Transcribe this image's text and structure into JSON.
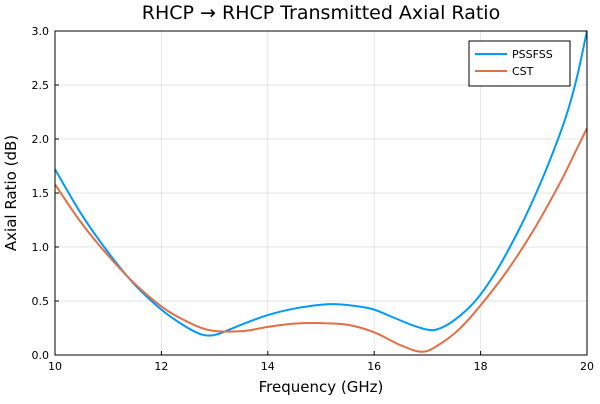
{
  "chart_data": {
    "type": "line",
    "title": "RHCP → RHCP Transmitted Axial Ratio",
    "xlabel": "Frequency (GHz)",
    "ylabel": "Axial Ratio (dB)",
    "xlim": [
      10,
      20
    ],
    "ylim": [
      0.0,
      3.0
    ],
    "xticks": [
      10,
      12,
      14,
      16,
      18,
      20
    ],
    "xtick_labels": [
      "10",
      "12",
      "14",
      "16",
      "18",
      "20"
    ],
    "yticks": [
      0.0,
      0.5,
      1.0,
      1.5,
      2.0,
      2.5,
      3.0
    ],
    "ytick_labels": [
      "0.0",
      "0.5",
      "1.0",
      "1.5",
      "2.0",
      "2.5",
      "3.0"
    ],
    "grid": true,
    "legend_position": "top-right",
    "series": [
      {
        "name": "PSSFSS",
        "color": "#009af9",
        "x": [
          10.0,
          10.5,
          11.0,
          11.5,
          12.0,
          12.4,
          12.7,
          12.9,
          13.1,
          13.5,
          14.0,
          14.5,
          15.0,
          15.3,
          15.7,
          16.0,
          16.3,
          16.7,
          17.0,
          17.2,
          17.5,
          17.9,
          18.3,
          18.7,
          19.0,
          19.3,
          19.6,
          19.8,
          20.0
        ],
        "y": [
          1.72,
          1.3,
          0.95,
          0.65,
          0.42,
          0.28,
          0.2,
          0.18,
          0.2,
          0.28,
          0.37,
          0.43,
          0.465,
          0.47,
          0.45,
          0.42,
          0.36,
          0.28,
          0.235,
          0.24,
          0.32,
          0.5,
          0.78,
          1.14,
          1.45,
          1.8,
          2.2,
          2.55,
          3.0
        ]
      },
      {
        "name": "CST",
        "color": "#e26f46",
        "x": [
          10.0,
          10.5,
          11.0,
          11.5,
          12.0,
          12.4,
          12.9,
          13.5,
          14.0,
          14.5,
          15.0,
          15.5,
          16.0,
          16.5,
          16.9,
          17.2,
          17.6,
          18.0,
          18.5,
          19.0,
          19.5,
          19.8,
          20.0
        ],
        "y": [
          1.58,
          1.22,
          0.92,
          0.66,
          0.45,
          0.33,
          0.23,
          0.22,
          0.26,
          0.29,
          0.295,
          0.28,
          0.21,
          0.09,
          0.03,
          0.09,
          0.24,
          0.46,
          0.78,
          1.16,
          1.6,
          1.9,
          2.1
        ]
      }
    ]
  }
}
